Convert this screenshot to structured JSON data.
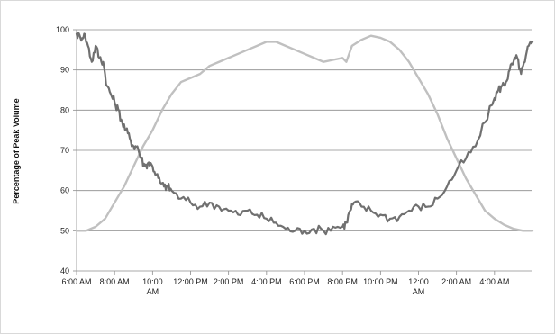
{
  "chart_data": {
    "type": "line",
    "title": "",
    "xlabel": "",
    "ylabel": "Percentage of Peak Volume",
    "ylim": [
      40,
      100
    ],
    "y_ticks": [
      40,
      50,
      60,
      70,
      80,
      90,
      100
    ],
    "xlim": [
      6,
      30
    ],
    "x_ticks": [
      {
        "x": 6,
        "label": [
          "6:00 AM"
        ]
      },
      {
        "x": 8,
        "label": [
          "8:00 AM"
        ]
      },
      {
        "x": 10,
        "label": [
          "10:00",
          "AM"
        ]
      },
      {
        "x": 12,
        "label": [
          "12:00 PM"
        ]
      },
      {
        "x": 14,
        "label": [
          "2:00 PM"
        ]
      },
      {
        "x": 16,
        "label": [
          "4:00 PM"
        ]
      },
      {
        "x": 18,
        "label": [
          "6:00 PM"
        ]
      },
      {
        "x": 20,
        "label": [
          "8:00 PM"
        ]
      },
      {
        "x": 22,
        "label": [
          "10:00 PM"
        ]
      },
      {
        "x": 24,
        "label": [
          "12:00",
          "AM"
        ]
      },
      {
        "x": 26,
        "label": [
          "2:00 AM"
        ]
      },
      {
        "x": 28,
        "label": [
          "4:00 AM"
        ]
      }
    ],
    "grid": "horizontal",
    "legend": "none",
    "series": [
      {
        "color": "#c0c0c0",
        "x": [
          6,
          6.5,
          7,
          7.5,
          8,
          8.5,
          9,
          9.5,
          10,
          10.5,
          11,
          11.5,
          12,
          12.5,
          13,
          13.5,
          14,
          14.5,
          15,
          15.5,
          16,
          16.5,
          17,
          17.5,
          18,
          18.5,
          19,
          19.5,
          20,
          20.2,
          20.5,
          21,
          21.5,
          22,
          22.5,
          23,
          23.5,
          24,
          24.5,
          25,
          25.5,
          26,
          26.5,
          27,
          27.5,
          28,
          28.5,
          29,
          29.5,
          30
        ],
        "y": [
          50,
          50,
          51,
          53,
          57,
          61,
          66,
          71,
          75,
          80,
          84,
          87,
          88,
          89,
          91,
          92,
          93,
          94,
          95,
          96,
          97,
          97,
          96,
          95,
          94,
          93,
          92,
          92.5,
          93,
          92,
          96,
          97.5,
          98.5,
          98,
          97,
          95,
          92,
          88,
          84,
          79,
          73,
          68,
          63,
          59,
          55,
          53,
          51.5,
          50.5,
          50,
          50
        ]
      },
      {
        "color": "#707070",
        "x": [
          6,
          6.2,
          6.4,
          6.6,
          6.8,
          7,
          7.2,
          7.4,
          7.6,
          7.8,
          8,
          8.2,
          8.4,
          8.6,
          8.8,
          9,
          9.2,
          9.4,
          9.6,
          9.8,
          10,
          10.2,
          10.4,
          10.6,
          10.8,
          11,
          11.5,
          12,
          12.5,
          13,
          13.5,
          14,
          14.5,
          15,
          15.5,
          16,
          16.5,
          17,
          17.5,
          18,
          18.5,
          19,
          19.5,
          20,
          20.2,
          20.4,
          20.6,
          21,
          21.5,
          22,
          22.5,
          23,
          23.5,
          24,
          24.5,
          25,
          25.5,
          26,
          26.5,
          27,
          27.5,
          28,
          28.2,
          28.4,
          28.6,
          28.8,
          29,
          29.2,
          29.4,
          29.6,
          29.8,
          30
        ],
        "y": [
          99,
          98,
          99,
          96,
          92,
          96,
          93,
          92,
          86,
          84,
          82,
          80,
          77,
          75,
          73,
          71,
          71,
          68,
          66,
          67,
          66,
          64,
          62,
          61,
          61,
          60,
          58,
          57,
          56,
          57,
          56,
          55,
          54,
          55,
          54,
          53,
          52,
          50.5,
          50,
          50,
          50.5,
          50,
          51,
          51,
          52,
          55,
          57,
          56,
          55,
          54,
          53,
          53.5,
          55,
          56,
          56,
          58,
          61,
          65,
          68,
          71,
          77,
          83,
          85,
          86,
          87,
          90,
          92,
          93,
          89,
          92,
          96,
          97
        ]
      }
    ]
  }
}
